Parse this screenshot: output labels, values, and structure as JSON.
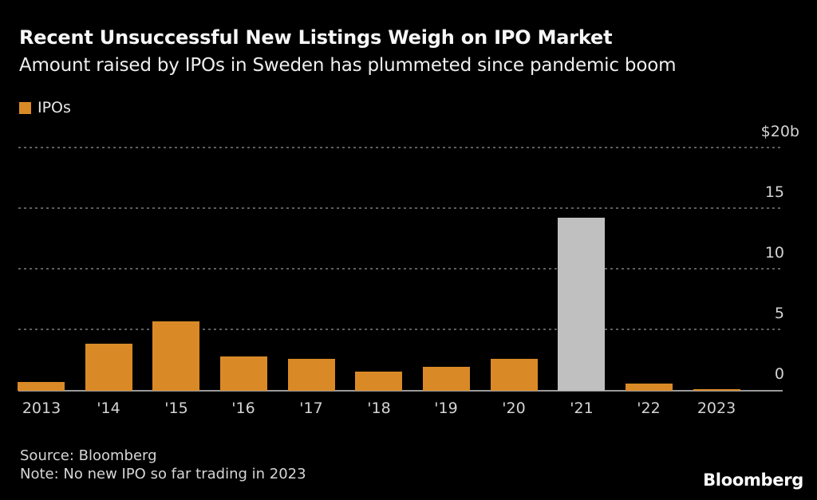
{
  "header": {
    "title": "Recent Unsuccessful New Listings Weigh on IPO Market",
    "subtitle": "Amount raised by IPOs in Sweden has plummeted since pandemic boom"
  },
  "legend": {
    "label": "IPOs",
    "swatch_color": "#d98a27"
  },
  "chart_data": {
    "type": "bar",
    "title": "Recent Unsuccessful New Listings Weigh on IPO Market",
    "subtitle": "Amount raised by IPOs in Sweden has plummeted since pandemic boom",
    "series_name": "IPOs",
    "unit": "billions of US dollars",
    "categories": [
      "2013",
      "'14",
      "'15",
      "'16",
      "'17",
      "'18",
      "'19",
      "'20",
      "'21",
      "'22",
      "2023"
    ],
    "values": [
      0.7,
      3.9,
      5.7,
      2.8,
      2.6,
      1.6,
      2.0,
      2.6,
      14.3,
      0.6,
      0.1
    ],
    "highlight_index": 8,
    "ylim": [
      0,
      20
    ],
    "y_ticks": [
      {
        "value": 20,
        "label": "$20b"
      },
      {
        "value": 15,
        "label": "15"
      },
      {
        "value": 10,
        "label": "10"
      },
      {
        "value": 5,
        "label": "5"
      },
      {
        "value": 0,
        "label": "0"
      }
    ],
    "grid": "horizontal dotted",
    "legend_position": "top-left",
    "colors": {
      "bar": "#d98a27",
      "highlight_bar": "#c0c0c0",
      "gridline": "#5e5e5e",
      "axis_line": "#9a9a9a",
      "tick_label": "#d4d4d4",
      "background": "#000000"
    }
  },
  "footer": {
    "source": "Source: Bloomberg",
    "note": "Note: No new IPO so far trading in 2023",
    "brand": "Bloomberg"
  }
}
